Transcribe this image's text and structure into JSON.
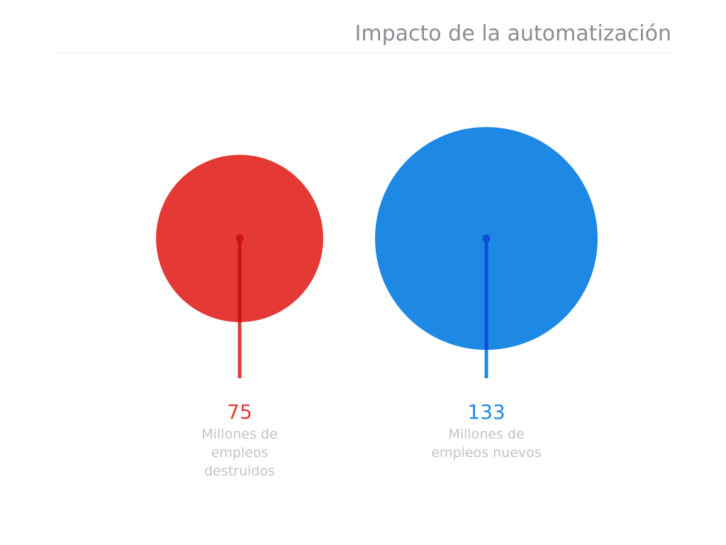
{
  "title": "Impacto de la automatización",
  "chart_data": {
    "type": "bubble",
    "title": "Impacto de la automatización",
    "series": [
      {
        "value": 75,
        "label_lines": [
          "Millones de",
          "empleos",
          "destruidos"
        ],
        "color": "#e53935",
        "stem_color": "#cc1111"
      },
      {
        "value": 133,
        "label_lines": [
          "Millones de",
          "empleos nuevos"
        ],
        "color": "#1e88e5",
        "stem_color": "#0d4fd8"
      }
    ]
  }
}
